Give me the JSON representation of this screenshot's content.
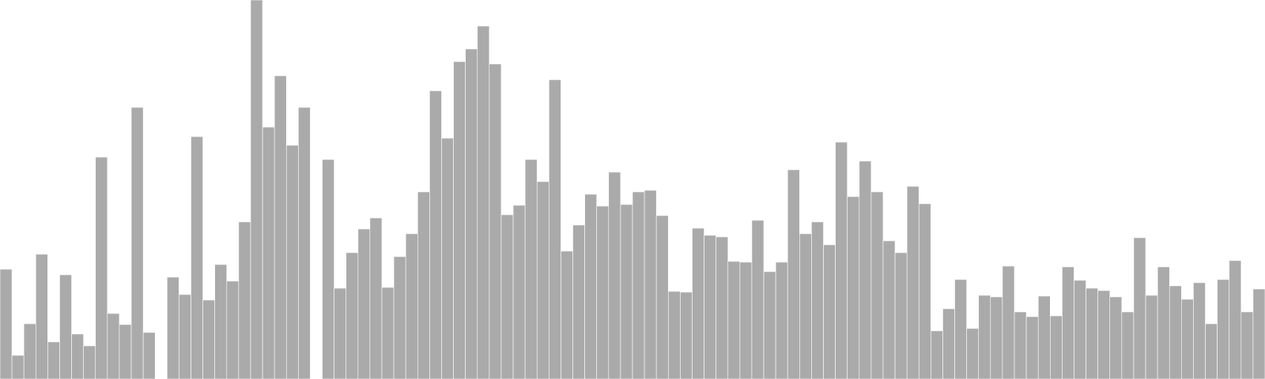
{
  "chart_data": {
    "type": "bar",
    "title": "",
    "xlabel": "",
    "ylabel": "",
    "ylim": [
      0,
      480
    ],
    "grid": false,
    "legend": "none",
    "bar_color": "#aaaaaa",
    "values": [
      139,
      30,
      70,
      158,
      47,
      132,
      57,
      42,
      281,
      83,
      69,
      344,
      59,
      0,
      129,
      107,
      307,
      100,
      145,
      124,
      199,
      480,
      319,
      384,
      296,
      344,
      0,
      278,
      115,
      160,
      190,
      204,
      116,
      155,
      184,
      237,
      365,
      305,
      402,
      418,
      447,
      399,
      208,
      220,
      278,
      250,
      379,
      162,
      195,
      234,
      219,
      262,
      221,
      237,
      239,
      207,
      111,
      110,
      191,
      182,
      180,
      149,
      148,
      201,
      136,
      148,
      265,
      184,
      199,
      170,
      300,
      231,
      276,
      237,
      175,
      160,
      244,
      222,
      61,
      89,
      126,
      64,
      106,
      104,
      143,
      85,
      79,
      105,
      80,
      142,
      125,
      115,
      112,
      104,
      85,
      179,
      106,
      142,
      118,
      101,
      122,
      70,
      126,
      150,
      85,
      114
    ]
  }
}
